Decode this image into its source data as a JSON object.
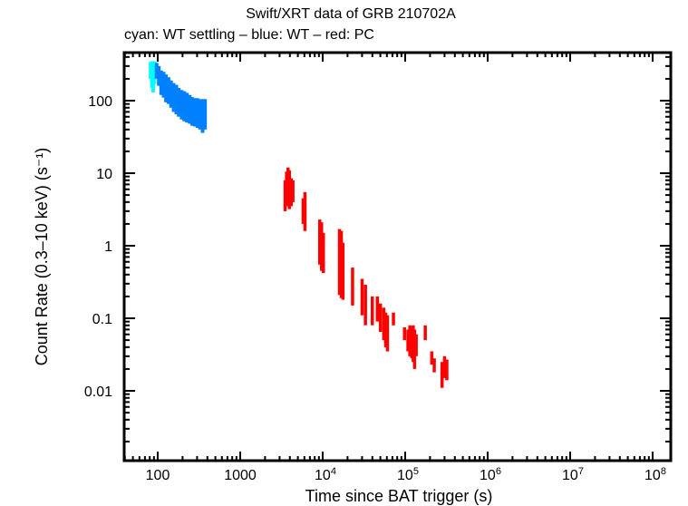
{
  "chart_data": {
    "type": "scatter",
    "title": "Swift/XRT data of GRB 210702A",
    "subtitle": "cyan: WT settling – blue: WT – red: PC",
    "xlabel": "Time since BAT trigger (s)",
    "ylabel": "Count Rate (0.3–10 keV) (s⁻¹)",
    "xscale": "log",
    "yscale": "log",
    "xlim": [
      40,
      120000000
    ],
    "ylim": [
      0.001,
      450
    ],
    "x_ticks": [
      {
        "value": 100,
        "label": "100"
      },
      {
        "value": 1000,
        "label": "1000"
      },
      {
        "value": 10000,
        "label": "10",
        "exp": "4"
      },
      {
        "value": 100000,
        "label": "10",
        "exp": "5"
      },
      {
        "value": 1000000,
        "label": "10",
        "exp": "6"
      },
      {
        "value": 10000000,
        "label": "10",
        "exp": "7"
      },
      {
        "value": 100000000,
        "label": "10",
        "exp": "8"
      }
    ],
    "y_ticks": [
      {
        "value": 100,
        "label": "100"
      },
      {
        "value": 10,
        "label": "10"
      },
      {
        "value": 1,
        "label": "1"
      },
      {
        "value": 0.1,
        "label": "0.1"
      },
      {
        "value": 0.01,
        "label": "0.01"
      }
    ],
    "grid": false,
    "series": [
      {
        "name": "WT settling",
        "color": "#00ffff",
        "points": [
          {
            "t": 82,
            "lo": 200,
            "hi": 340
          },
          {
            "t": 85,
            "lo": 150,
            "hi": 350
          },
          {
            "t": 88,
            "lo": 130,
            "hi": 330
          },
          {
            "t": 91,
            "lo": 170,
            "hi": 350
          },
          {
            "t": 94,
            "lo": 220,
            "hi": 340
          }
        ]
      },
      {
        "name": "WT",
        "color": "#0080ff",
        "points": [
          {
            "t": 97,
            "lo": 200,
            "hi": 330
          },
          {
            "t": 103,
            "lo": 160,
            "hi": 300
          },
          {
            "t": 110,
            "lo": 120,
            "hi": 260
          },
          {
            "t": 118,
            "lo": 110,
            "hi": 250
          },
          {
            "t": 126,
            "lo": 95,
            "hi": 230
          },
          {
            "t": 135,
            "lo": 90,
            "hi": 210
          },
          {
            "t": 145,
            "lo": 80,
            "hi": 190
          },
          {
            "t": 156,
            "lo": 70,
            "hi": 175
          },
          {
            "t": 168,
            "lo": 65,
            "hi": 165
          },
          {
            "t": 180,
            "lo": 60,
            "hi": 150
          },
          {
            "t": 195,
            "lo": 55,
            "hi": 140
          },
          {
            "t": 210,
            "lo": 52,
            "hi": 135
          },
          {
            "t": 226,
            "lo": 50,
            "hi": 128
          },
          {
            "t": 244,
            "lo": 48,
            "hi": 120
          },
          {
            "t": 262,
            "lo": 45,
            "hi": 112
          },
          {
            "t": 282,
            "lo": 44,
            "hi": 108
          },
          {
            "t": 304,
            "lo": 42,
            "hi": 108
          },
          {
            "t": 326,
            "lo": 40,
            "hi": 105
          },
          {
            "t": 350,
            "lo": 36,
            "hi": 105
          },
          {
            "t": 375,
            "lo": 40,
            "hi": 105
          }
        ]
      },
      {
        "name": "PC",
        "color": "#ff0000",
        "points": [
          {
            "t": 3500,
            "lo": 3.0,
            "hi": 8.0
          },
          {
            "t": 3650,
            "lo": 3.5,
            "hi": 10.5
          },
          {
            "t": 3800,
            "lo": 3.8,
            "hi": 12.0
          },
          {
            "t": 3950,
            "lo": 3.2,
            "hi": 11.0
          },
          {
            "t": 4150,
            "lo": 3.5,
            "hi": 8.5
          },
          {
            "t": 4350,
            "lo": 4.0,
            "hi": 8.0
          },
          {
            "t": 5800,
            "lo": 2.0,
            "hi": 4.5
          },
          {
            "t": 6100,
            "lo": 1.6,
            "hi": 5.5
          },
          {
            "t": 9200,
            "lo": 0.55,
            "hi": 2.3
          },
          {
            "t": 9700,
            "lo": 0.45,
            "hi": 2.1
          },
          {
            "t": 10200,
            "lo": 0.42,
            "hi": 1.5
          },
          {
            "t": 16000,
            "lo": 0.21,
            "hi": 1.7
          },
          {
            "t": 16800,
            "lo": 0.19,
            "hi": 1.6
          },
          {
            "t": 17600,
            "lo": 0.18,
            "hi": 1.1
          },
          {
            "t": 23000,
            "lo": 0.15,
            "hi": 0.5
          },
          {
            "t": 30000,
            "lo": 0.11,
            "hi": 0.35
          },
          {
            "t": 33000,
            "lo": 0.08,
            "hi": 0.29
          },
          {
            "t": 40000,
            "lo": 0.08,
            "hi": 0.2
          },
          {
            "t": 46000,
            "lo": 0.09,
            "hi": 0.2
          },
          {
            "t": 50000,
            "lo": 0.065,
            "hi": 0.16
          },
          {
            "t": 55000,
            "lo": 0.05,
            "hi": 0.14
          },
          {
            "t": 58000,
            "lo": 0.04,
            "hi": 0.12
          },
          {
            "t": 61000,
            "lo": 0.035,
            "hi": 0.11
          },
          {
            "t": 72000,
            "lo": 0.08,
            "hi": 0.12
          },
          {
            "t": 98000,
            "lo": 0.05,
            "hi": 0.075
          },
          {
            "t": 108000,
            "lo": 0.035,
            "hi": 0.07
          },
          {
            "t": 114000,
            "lo": 0.03,
            "hi": 0.08
          },
          {
            "t": 120000,
            "lo": 0.028,
            "hi": 0.075
          },
          {
            "t": 125000,
            "lo": 0.025,
            "hi": 0.08
          },
          {
            "t": 130000,
            "lo": 0.02,
            "hi": 0.07
          },
          {
            "t": 136000,
            "lo": 0.03,
            "hi": 0.06
          },
          {
            "t": 175000,
            "lo": 0.05,
            "hi": 0.08
          },
          {
            "t": 210000,
            "lo": 0.023,
            "hi": 0.035
          },
          {
            "t": 225000,
            "lo": 0.018,
            "hi": 0.028
          },
          {
            "t": 280000,
            "lo": 0.011,
            "hi": 0.025
          },
          {
            "t": 300000,
            "lo": 0.015,
            "hi": 0.03
          },
          {
            "t": 320000,
            "lo": 0.014,
            "hi": 0.027
          }
        ]
      }
    ]
  }
}
